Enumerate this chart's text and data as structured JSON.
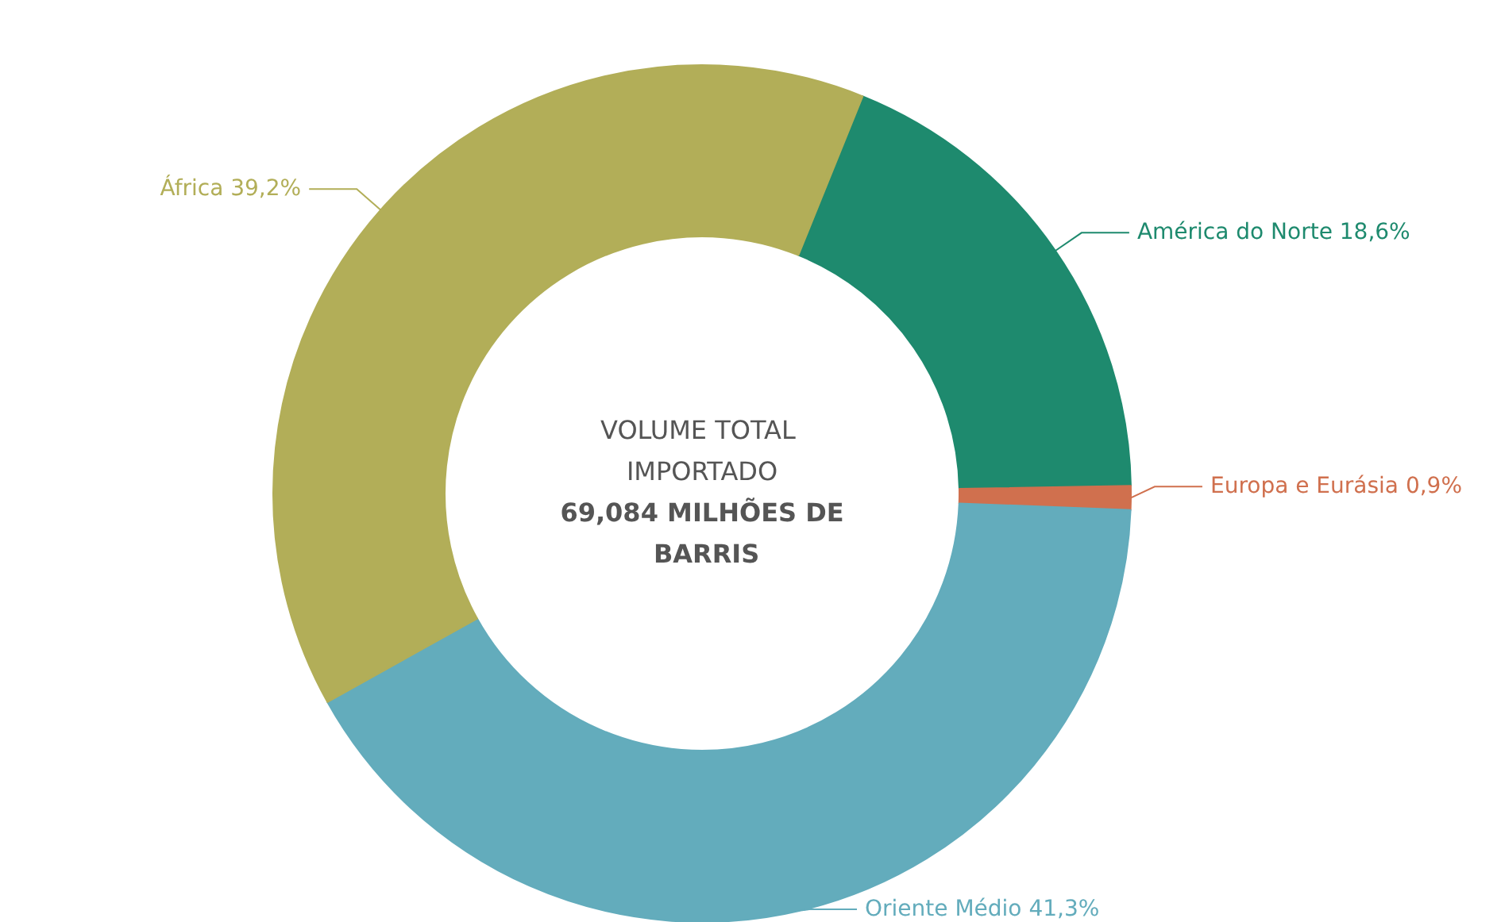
{
  "chart_data": {
    "type": "donut",
    "categories": [
      "América do Norte",
      "Europa e Eurásia",
      "Oriente Médio",
      "África"
    ],
    "values": [
      18.6,
      0.9,
      41.3,
      39.2
    ],
    "colors": [
      "#1e8a6e",
      "#d0704e",
      "#63acbc",
      "#b2ae58"
    ],
    "value_labels": [
      "18,6%",
      "0,9%",
      "41,3%",
      "39,2%"
    ],
    "annotations": [
      "VOLUME TOTAL IMPORTADO",
      "69,084 MILHÕES DE BARRIS"
    ],
    "legend": false
  }
}
